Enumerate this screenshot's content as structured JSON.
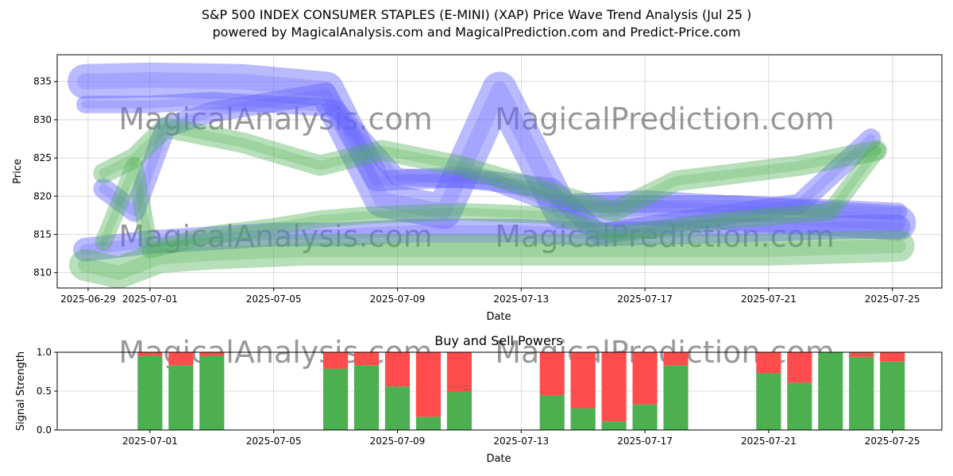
{
  "title_line1": "S&P 500 INDEX CONSUMER STAPLES (E-MINI) (XAP) Price Wave Trend Analysis (Jul 25 )",
  "title_line2": "powered by MagicalAnalysis.com and MagicalPrediction.com and Predict-Price.com",
  "watermarks": [
    "MagicalAnalysis.com",
    "MagicalPrediction.com"
  ],
  "colors": {
    "green_band": "#4CAF50",
    "blue_band": "#6666FF",
    "buy": "#4CAF50",
    "sell": "#FF4C4C",
    "grid": "#b0b0b0"
  },
  "chart_data": [
    {
      "type": "line",
      "title": "",
      "xlabel": "Date",
      "ylabel": "Price",
      "ylim": [
        808,
        838.5
      ],
      "x_range": [
        "2025-06-28",
        "2025-07-26"
      ],
      "x_tick_labels": [
        "2025-06-29",
        "2025-07-01",
        "2025-07-05",
        "2025-07-09",
        "2025-07-13",
        "2025-07-17",
        "2025-07-21",
        "2025-07-25"
      ],
      "x_tick_days": [
        1,
        3,
        7,
        11,
        15,
        19,
        23,
        27
      ],
      "y_ticks": [
        810,
        815,
        820,
        825,
        830,
        835
      ],
      "series": [
        {
          "name": "blue-wave-main",
          "color": "blue",
          "x": [
            0.9,
            3,
            6,
            8.7,
            10.5,
            12.5,
            14.3,
            16.3,
            19,
            27.2
          ],
          "values": [
            835,
            835.2,
            835,
            834,
            819.5,
            818,
            834,
            818,
            818.5,
            816.5
          ]
        },
        {
          "name": "blue-wave-top",
          "color": "blue",
          "x": [
            0.9,
            3,
            5,
            9,
            11,
            14,
            16,
            19,
            22,
            27.2
          ],
          "values": [
            832,
            832,
            832.5,
            831.5,
            822.5,
            822,
            819,
            819,
            819,
            818
          ]
        },
        {
          "name": "blue-wave-lower",
          "color": "blue",
          "x": [
            0.9,
            3,
            7,
            9,
            11.5,
            15,
            17.5,
            22,
            26,
            27.2
          ],
          "values": [
            813,
            814,
            815,
            815,
            815.5,
            815.5,
            815,
            815.5,
            816,
            816
          ]
        },
        {
          "name": "blue-wave-zigzag",
          "color": "blue",
          "x": [
            1.5,
            2.5,
            3.5,
            5,
            8.7,
            10.3,
            13,
            16,
            17.5,
            19,
            24,
            26.3
          ],
          "values": [
            821,
            818,
            829,
            831,
            833.5,
            822,
            822.5,
            821,
            815,
            816,
            819,
            827.5
          ]
        },
        {
          "name": "green-wave-upper",
          "color": "green",
          "x": [
            1.5,
            2.5,
            3.5,
            6,
            8.5,
            10.5,
            13,
            15.5,
            18,
            20,
            24,
            26.5
          ],
          "values": [
            823,
            825,
            829,
            827,
            824,
            826,
            824,
            821,
            818,
            822,
            824,
            826
          ]
        },
        {
          "name": "green-wave-mid",
          "color": "green",
          "x": [
            1.5,
            2.5,
            3,
            5,
            7,
            8.5,
            10,
            13,
            16,
            18,
            22,
            25,
            26.5
          ],
          "values": [
            814,
            824,
            813,
            815,
            816,
            817,
            817.5,
            818,
            817.5,
            815,
            817,
            818,
            826
          ]
        },
        {
          "name": "green-wave-lower",
          "color": "green",
          "x": [
            0.9,
            2,
            3.3,
            5,
            8,
            11,
            15,
            19,
            23,
            27.2
          ],
          "values": [
            811,
            810,
            812,
            812.5,
            813,
            813,
            813,
            813,
            813,
            813.5
          ]
        }
      ]
    },
    {
      "type": "bar",
      "title": "Buy and Sell Powers",
      "xlabel": "Date",
      "ylabel": "Signal Strength",
      "ylim": [
        0,
        1
      ],
      "y_ticks": [
        0.0,
        0.5,
        1.0
      ],
      "y_tick_labels": [
        "0.0",
        "0.5",
        "1.0"
      ],
      "x_range": [
        "2025-06-28",
        "2025-07-26"
      ],
      "x_tick_labels": [
        "2025-07-01",
        "2025-07-05",
        "2025-07-09",
        "2025-07-13",
        "2025-07-17",
        "2025-07-21",
        "2025-07-25"
      ],
      "x_tick_days": [
        3,
        7,
        11,
        15,
        19,
        23,
        27
      ],
      "bar_days": [
        3,
        4,
        5,
        9,
        10,
        11,
        12,
        13,
        16,
        17,
        18,
        19,
        20,
        23,
        24,
        25,
        26,
        27
      ],
      "categories": [
        "2025-07-01",
        "2025-07-02",
        "2025-07-03",
        "2025-07-07",
        "2025-07-08",
        "2025-07-09",
        "2025-07-10",
        "2025-07-11",
        "2025-07-14",
        "2025-07-15",
        "2025-07-16",
        "2025-07-17",
        "2025-07-18",
        "2025-07-21",
        "2025-07-22",
        "2025-07-23",
        "2025-07-24",
        "2025-07-25"
      ],
      "series": [
        {
          "name": "Buy",
          "values": [
            0.95,
            0.83,
            0.95,
            0.79,
            0.83,
            0.56,
            0.17,
            0.5,
            0.45,
            0.28,
            0.11,
            0.33,
            0.83,
            0.73,
            0.61,
            1.0,
            0.94,
            0.88
          ]
        },
        {
          "name": "Sell",
          "values": [
            0.05,
            0.17,
            0.05,
            0.21,
            0.17,
            0.44,
            0.83,
            0.5,
            0.55,
            0.72,
            0.89,
            0.67,
            0.17,
            0.27,
            0.39,
            0.0,
            0.06,
            0.12
          ]
        }
      ]
    }
  ]
}
